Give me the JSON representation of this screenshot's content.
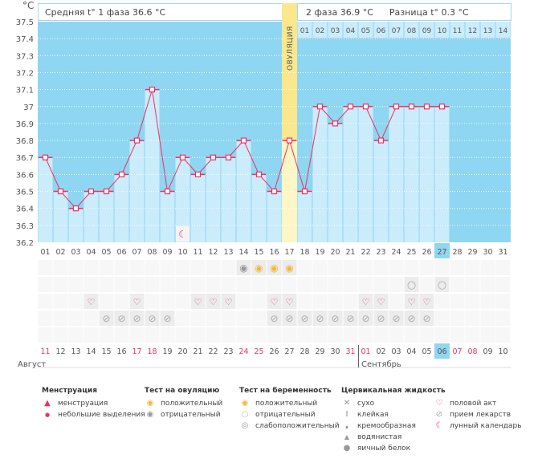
{
  "header": {
    "phase1": "Средняя t° 1 фаза 36.6 °C",
    "phase2": "2 фаза 36.9 °C",
    "diff": "Разница t° 0.3 °C",
    "ovulation": "ОВУЛЯЦИЯ",
    "unit": "°C"
  },
  "chart_data": {
    "type": "line",
    "ylabel": "°C",
    "ylim": [
      36.2,
      37.5
    ],
    "yticks": [
      "37.5",
      "37.4",
      "37.3",
      "37.2",
      "37.1",
      "37",
      "36.9",
      "36.8",
      "36.7",
      "36.6",
      "36.5",
      "36.4",
      "36.3",
      "36.2"
    ],
    "cycle_days": [
      "01",
      "02",
      "03",
      "04",
      "05",
      "06",
      "07",
      "08",
      "09",
      "10",
      "11",
      "12",
      "13",
      "14",
      "15",
      "16",
      "17",
      "18",
      "19",
      "20",
      "21",
      "22",
      "23",
      "24",
      "25",
      "26",
      "27",
      "28",
      "29",
      "30",
      "31"
    ],
    "current_cycle_day": "27",
    "ovulation_day": "17",
    "post_ovulation_days": [
      "01",
      "02",
      "03",
      "04",
      "05",
      "06",
      "07",
      "08",
      "09",
      "10",
      "11",
      "12",
      "13",
      "14"
    ],
    "temperatures": [
      36.7,
      36.5,
      36.4,
      36.5,
      36.5,
      36.6,
      36.8,
      37.1,
      36.5,
      36.7,
      36.6,
      36.7,
      36.7,
      36.8,
      36.6,
      36.5,
      36.8,
      36.5,
      37.0,
      36.9,
      37.0,
      37.0,
      36.8,
      37.0,
      37.0,
      37.0,
      37.0
    ],
    "dates": [
      "11",
      "12",
      "13",
      "14",
      "15",
      "16",
      "17",
      "18",
      "19",
      "20",
      "21",
      "22",
      "23",
      "24",
      "25",
      "26",
      "27",
      "28",
      "29",
      "30",
      "31",
      "01",
      "02",
      "03",
      "04",
      "05",
      "06",
      "07",
      "08",
      "09",
      "10"
    ],
    "weekend_dates_idx": [
      0,
      6,
      7,
      13,
      14,
      20,
      21,
      27,
      28
    ],
    "today_date": "06",
    "months": [
      "Август",
      "Сентябрь"
    ],
    "ovulation_test": {
      "negative": [
        14
      ],
      "positive": [
        15,
        16,
        17
      ]
    },
    "pregnancy_test": {
      "negative": [
        25,
        27
      ]
    },
    "intercourse": [
      4,
      7,
      11,
      12,
      13,
      16,
      17,
      22,
      23,
      25,
      26
    ],
    "medication": [
      5,
      6,
      7,
      8,
      9,
      16,
      17,
      18,
      19,
      20,
      21,
      22,
      23,
      24,
      25,
      26
    ],
    "moon": [
      10
    ]
  },
  "colors": {
    "bg": "#8fd6f2",
    "bar": "#caecfb",
    "line": "#f0305f",
    "ovul": "#fff6c6",
    "ovulTop": "#fbe78c",
    "weekend": "#f0305f"
  },
  "legend": {
    "menstruation": {
      "title": "Менструация",
      "items": [
        "менструация",
        "небольшие выделения"
      ]
    },
    "ovulation_test": {
      "title": "Тест на овуляцию",
      "items": [
        "положительный",
        "отрицательный"
      ]
    },
    "pregnancy_test": {
      "title": "Тест на беременность",
      "items": [
        "положительный",
        "отрицательный",
        "слабоположительный"
      ]
    },
    "cervical": {
      "title": "Цервикальная жидкость",
      "items": [
        "сухо",
        "клейкая",
        "кремообразная",
        "водянистая",
        "яичный белок"
      ]
    },
    "other": {
      "items": [
        "половой акт",
        "прием лекарств",
        "лунный календарь"
      ]
    }
  }
}
